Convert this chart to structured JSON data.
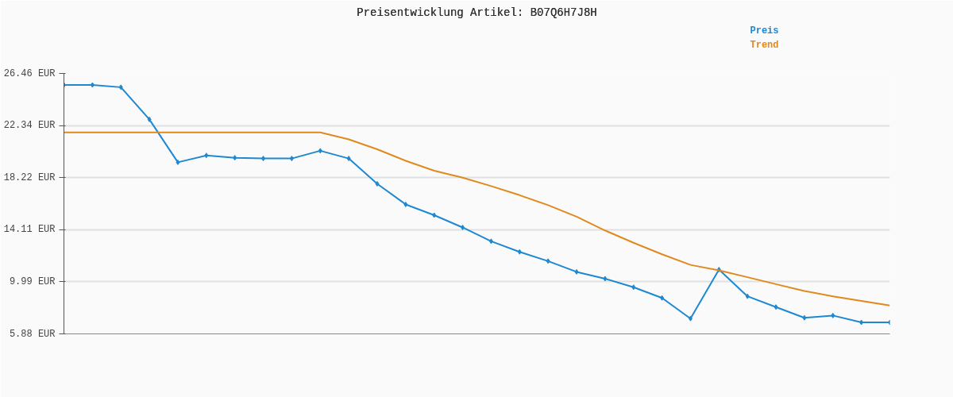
{
  "chart_data": {
    "type": "line",
    "title": "Preisentwicklung Artikel: B07Q6H7J8H",
    "categories": [
      null,
      null,
      null,
      null,
      null,
      null,
      null,
      null,
      null,
      null,
      null,
      null,
      null,
      null,
      null,
      null,
      null,
      null,
      null,
      null,
      null,
      null,
      null,
      null,
      null,
      null,
      null,
      null,
      null,
      null
    ],
    "series": [
      {
        "name": "Preis",
        "color": "#1e88d2",
        "marker": "diamond",
        "values": [
          25.55,
          25.55,
          25.37,
          22.83,
          19.44,
          19.98,
          19.8,
          19.74,
          19.74,
          20.35,
          19.74,
          17.74,
          16.11,
          15.26,
          14.29,
          13.2,
          12.36,
          11.63,
          10.78,
          10.24,
          9.57,
          8.72,
          7.09,
          10.96,
          8.85,
          8.0,
          7.15,
          7.33,
          6.79,
          6.79
        ]
      },
      {
        "name": "Trend",
        "color": "#e08a1e",
        "marker": "none",
        "values": [
          21.8,
          21.8,
          21.8,
          21.8,
          21.8,
          21.8,
          21.8,
          21.8,
          21.8,
          21.8,
          21.25,
          20.47,
          19.56,
          18.77,
          18.23,
          17.56,
          16.84,
          16.05,
          15.14,
          14.05,
          13.08,
          12.17,
          11.33,
          10.9,
          10.36,
          9.81,
          9.27,
          8.85,
          8.48,
          8.12
        ]
      }
    ],
    "ylim": [
      5.88,
      26.46
    ],
    "yticks": [
      {
        "value": 5.88,
        "label": "5.88 EUR"
      },
      {
        "value": 9.99,
        "label": "9.99 EUR"
      },
      {
        "value": 14.11,
        "label": "14.11 EUR"
      },
      {
        "value": 18.22,
        "label": "18.22 EUR"
      },
      {
        "value": 22.34,
        "label": "22.34 EUR"
      },
      {
        "value": 26.46,
        "label": "26.46 EUR"
      }
    ],
    "grid": "y",
    "line_style": "solid"
  }
}
